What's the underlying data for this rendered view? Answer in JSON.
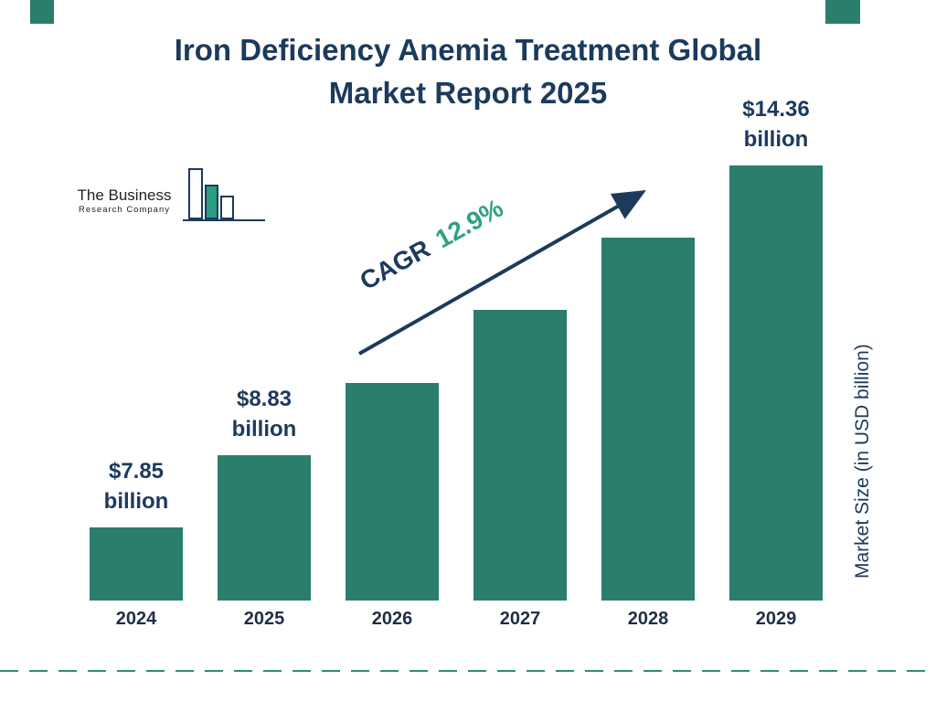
{
  "logo": {
    "line1": "The Business",
    "line2": "Research Company"
  },
  "title": {
    "line1": "Iron Deficiency Anemia Treatment Global",
    "line2": "Market Report 2025"
  },
  "cagr": {
    "label": "CAGR",
    "value": "12.9%"
  },
  "ylabel": "Market Size (in USD billion)",
  "colors": {
    "navy": "#1c3a5c",
    "teal_bar": "#2b7d6c",
    "green_accent": "#2ea184",
    "dash_line": "#2f8a78"
  },
  "chart_data": {
    "type": "bar",
    "title": "Iron Deficiency Anemia Treatment Global Market Report 2025",
    "categories": [
      "2024",
      "2025",
      "2026",
      "2027",
      "2028",
      "2029"
    ],
    "values": [
      7.85,
      8.83,
      9.97,
      11.25,
      12.7,
      14.36
    ],
    "data_labels": [
      {
        "index": 0,
        "amount": "$7.85",
        "unit": "billion"
      },
      {
        "index": 1,
        "amount": "$8.83",
        "unit": "billion"
      },
      {
        "index": 5,
        "amount": "$14.36",
        "unit": "billion"
      }
    ],
    "cagr": "12.9%",
    "xlabel": "",
    "ylabel": "Market Size (in USD billion)",
    "bar_color": "#2b7d6c",
    "grid": false,
    "legend": "none",
    "ylim": [
      0,
      16
    ],
    "display": {
      "bar_height_style": "equal-step"
    }
  }
}
